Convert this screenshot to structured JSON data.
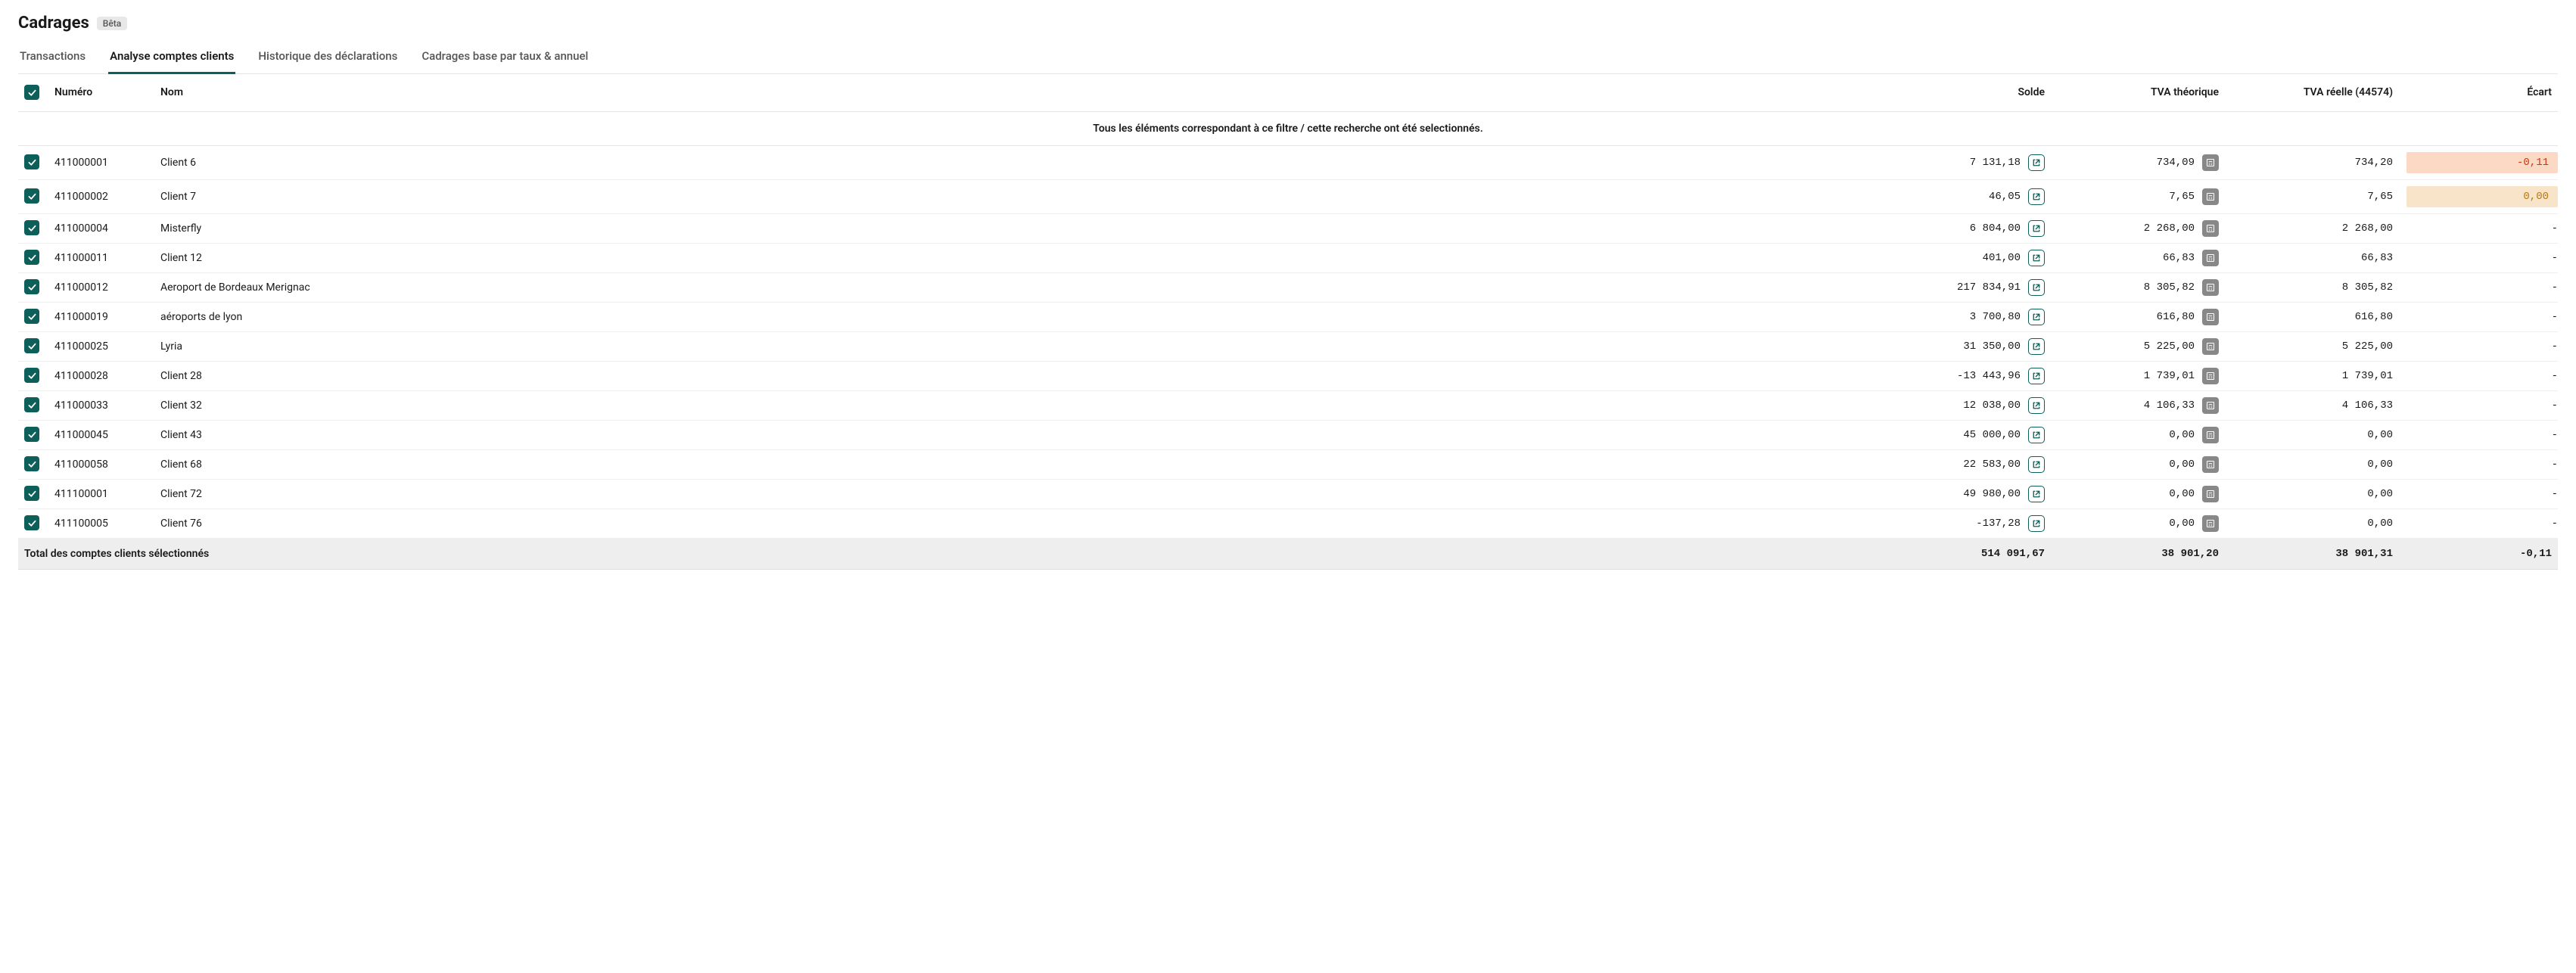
{
  "header": {
    "title": "Cadrages",
    "badge": "Bêta"
  },
  "tabs": [
    {
      "label": "Transactions",
      "active": false
    },
    {
      "label": "Analyse comptes clients",
      "active": true
    },
    {
      "label": "Historique des déclarations",
      "active": false
    },
    {
      "label": "Cadrages base par taux & annuel",
      "active": false
    }
  ],
  "table": {
    "columns": {
      "numero": "Numéro",
      "nom": "Nom",
      "solde": "Solde",
      "tva_theorique": "TVA théorique",
      "tva_reelle": "TVA réelle (44574)",
      "ecart": "Écart"
    },
    "filter_banner": "Tous les éléments correspondant à ce filtre / cette recherche ont été selectionnés.",
    "rows": [
      {
        "numero": "411000001",
        "nom": "Client 6",
        "solde": "7 131,18",
        "tvat": "734,09",
        "tvar": "734,20",
        "ecart": "-0,11",
        "ecart_class": "ecart-neg"
      },
      {
        "numero": "411000002",
        "nom": "Client 7",
        "solde": "46,05",
        "tvat": "7,65",
        "tvar": "7,65",
        "ecart": "0,00",
        "ecart_class": "ecart-zero"
      },
      {
        "numero": "411000004",
        "nom": "Misterfly",
        "solde": "6 804,00",
        "tvat": "2 268,00",
        "tvar": "2 268,00",
        "ecart": "-",
        "ecart_class": ""
      },
      {
        "numero": "411000011",
        "nom": "Client 12",
        "solde": "401,00",
        "tvat": "66,83",
        "tvar": "66,83",
        "ecart": "-",
        "ecart_class": ""
      },
      {
        "numero": "411000012",
        "nom": "Aeroport de Bordeaux Merignac",
        "solde": "217 834,91",
        "tvat": "8 305,82",
        "tvar": "8 305,82",
        "ecart": "-",
        "ecart_class": ""
      },
      {
        "numero": "411000019",
        "nom": "aéroports de lyon",
        "solde": "3 700,80",
        "tvat": "616,80",
        "tvar": "616,80",
        "ecart": "-",
        "ecart_class": ""
      },
      {
        "numero": "411000025",
        "nom": "Lyria",
        "solde": "31 350,00",
        "tvat": "5 225,00",
        "tvar": "5 225,00",
        "ecart": "-",
        "ecart_class": ""
      },
      {
        "numero": "411000028",
        "nom": "Client 28",
        "solde": "-13 443,96",
        "tvat": "1 739,01",
        "tvar": "1 739,01",
        "ecart": "-",
        "ecart_class": ""
      },
      {
        "numero": "411000033",
        "nom": "Client 32",
        "solde": "12 038,00",
        "tvat": "4 106,33",
        "tvar": "4 106,33",
        "ecart": "-",
        "ecart_class": ""
      },
      {
        "numero": "411000045",
        "nom": "Client 43",
        "solde": "45 000,00",
        "tvat": "0,00",
        "tvar": "0,00",
        "ecart": "-",
        "ecart_class": ""
      },
      {
        "numero": "411000058",
        "nom": "Client 68",
        "solde": "22 583,00",
        "tvat": "0,00",
        "tvar": "0,00",
        "ecart": "-",
        "ecart_class": ""
      },
      {
        "numero": "411100001",
        "nom": "Client 72",
        "solde": "49 980,00",
        "tvat": "0,00",
        "tvar": "0,00",
        "ecart": "-",
        "ecart_class": ""
      },
      {
        "numero": "411100005",
        "nom": "Client 76",
        "solde": "-137,28",
        "tvat": "0,00",
        "tvar": "0,00",
        "ecart": "-",
        "ecart_class": ""
      }
    ],
    "footer": {
      "label": "Total des comptes clients sélectionnés",
      "solde": "514 091,67",
      "tvat": "38 901,20",
      "tvar": "38 901,31",
      "ecart": "-0,11"
    }
  },
  "colors": {
    "accent": "#0d5f5a",
    "hl_neg_bg": "#fbd9c5",
    "hl_neg_fg": "#c43a0e",
    "hl_zero_bg": "#f8e4c9",
    "hl_zero_fg": "#b57a14"
  }
}
